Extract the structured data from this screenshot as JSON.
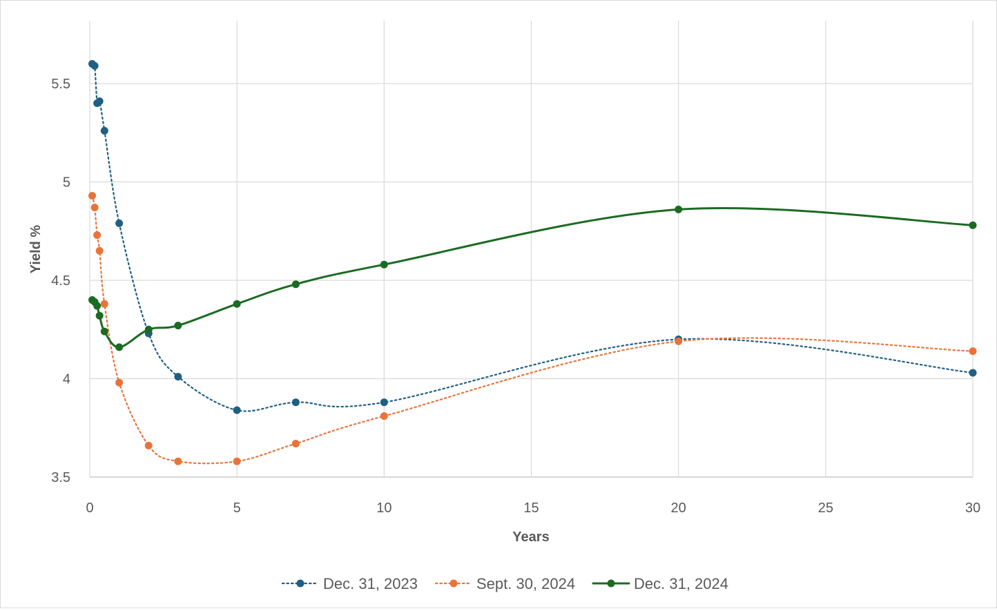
{
  "chart_data": {
    "type": "line",
    "title": "",
    "xlabel": "Years",
    "ylabel": "Yield %",
    "xlim": [
      0,
      30
    ],
    "ylim": [
      3.5,
      5.9
    ],
    "xticks": [
      0,
      5,
      10,
      15,
      20,
      25,
      30
    ],
    "yticks": [
      3.5,
      4,
      4.5,
      5,
      5.5
    ],
    "xtick_labels": [
      "0",
      "5",
      "10",
      "15",
      "20",
      "25",
      "30"
    ],
    "ytick_labels": [
      "3.5",
      "4",
      "4.5",
      "5",
      "5.5"
    ],
    "grid": true,
    "legend_position": "bottom",
    "x": [
      0.083,
      0.167,
      0.25,
      0.333,
      0.5,
      1,
      2,
      3,
      5,
      7,
      10,
      20,
      30
    ],
    "series": [
      {
        "name": "Dec. 31, 2023",
        "color": "#1f5f82",
        "dash": "dotted",
        "values": [
          5.6,
          5.59,
          5.4,
          5.41,
          5.26,
          4.79,
          4.23,
          4.01,
          3.84,
          3.88,
          3.88,
          4.2,
          4.03
        ]
      },
      {
        "name": "Sept. 30, 2024",
        "color": "#e8743b",
        "dash": "dotted",
        "values": [
          4.93,
          4.87,
          4.73,
          4.65,
          4.38,
          3.98,
          3.66,
          3.58,
          3.58,
          3.67,
          3.81,
          4.19,
          4.14
        ]
      },
      {
        "name": "Dec. 31, 2024",
        "color": "#1b6b22",
        "dash": "solid",
        "values": [
          4.4,
          4.39,
          4.37,
          4.32,
          4.24,
          4.16,
          4.25,
          4.27,
          4.38,
          4.48,
          4.58,
          4.86,
          4.78
        ]
      }
    ]
  }
}
